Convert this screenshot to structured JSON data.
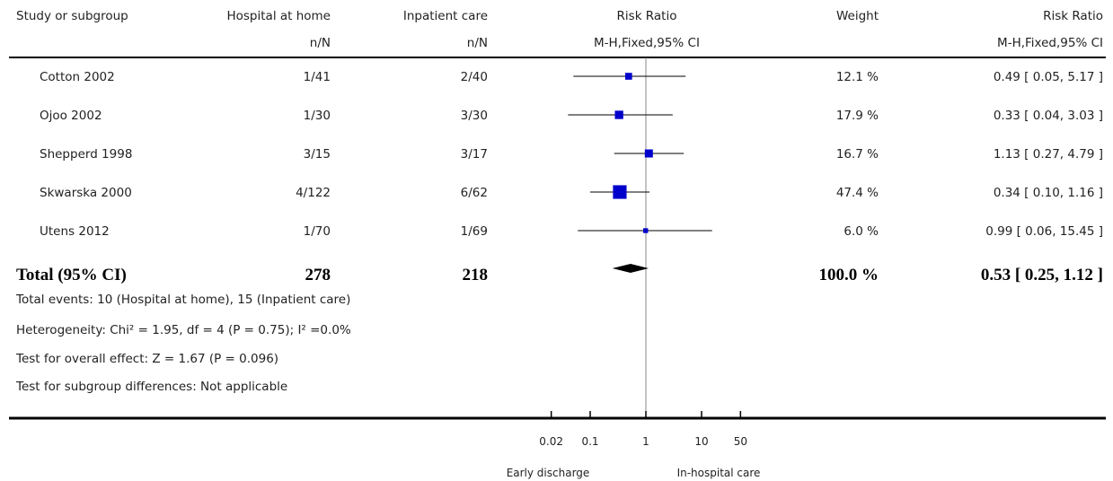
{
  "headers": {
    "study": "Study or subgroup",
    "exp": "Hospital at home",
    "exp_sub": "n/N",
    "ctrl": "Inpatient care",
    "ctrl_sub": "n/N",
    "rr": "Risk Ratio",
    "rr_sub": "M-H,Fixed,95% CI",
    "weight": "Weight",
    "rr2": "Risk Ratio",
    "rr2_sub": "M-H,Fixed,95% CI"
  },
  "studies": [
    {
      "name": "Cotton 2002",
      "exp": "1/41",
      "ctrl": "2/40",
      "weight": "12.1 %",
      "ci_text": "0.49 [ 0.05, 5.17 ]"
    },
    {
      "name": "Ojoo 2002",
      "exp": "1/30",
      "ctrl": "3/30",
      "weight": "17.9 %",
      "ci_text": "0.33 [ 0.04, 3.03 ]"
    },
    {
      "name": "Shepperd 1998",
      "exp": "3/15",
      "ctrl": "3/17",
      "weight": "16.7 %",
      "ci_text": "1.13 [ 0.27, 4.79 ]"
    },
    {
      "name": "Skwarska 2000",
      "exp": "4/122",
      "ctrl": "6/62",
      "weight": "47.4 %",
      "ci_text": "0.34 [ 0.10, 1.16 ]"
    },
    {
      "name": "Utens 2012",
      "exp": "1/70",
      "ctrl": "1/69",
      "weight": "6.0 %",
      "ci_text": "0.99 [ 0.06, 15.45 ]"
    }
  ],
  "total": {
    "label": "Total (95% CI)",
    "exp": "278",
    "ctrl": "218",
    "weight": "100.0 %",
    "ci_text": "0.53 [ 0.25, 1.12 ]"
  },
  "notes": {
    "events": "Total events: 10 (Hospital at home), 15 (Inpatient care)",
    "heterogeneity": "Heterogeneity: Chi² = 1.95, df = 4 (P = 0.75); I² =0.0%",
    "overall": "Test for overall effect: Z = 1.67 (P = 0.096)",
    "subgroup": "Test for subgroup differences: Not applicable"
  },
  "axis": {
    "tick_labels": [
      "0.02",
      "0.1",
      "1",
      "10",
      "50"
    ],
    "left_label": "Early discharge",
    "right_label": "In-hospital care"
  },
  "colors": {
    "marker": "#0000cc",
    "line": "#000000",
    "null_line": "#888888"
  },
  "chart_data": {
    "type": "forest",
    "scale": "log",
    "xlim": [
      0.02,
      50
    ],
    "ticks": [
      0.02,
      0.1,
      1,
      10,
      50
    ],
    "xlabel_left": "Early discharge",
    "xlabel_right": "In-hospital care",
    "points": [
      {
        "study": "Cotton 2002",
        "rr": 0.49,
        "lo": 0.05,
        "hi": 5.17,
        "weight": 12.1
      },
      {
        "study": "Ojoo 2002",
        "rr": 0.33,
        "lo": 0.04,
        "hi": 3.03,
        "weight": 17.9
      },
      {
        "study": "Shepperd 1998",
        "rr": 1.13,
        "lo": 0.27,
        "hi": 4.79,
        "weight": 16.7
      },
      {
        "study": "Skwarska 2000",
        "rr": 0.34,
        "lo": 0.1,
        "hi": 1.16,
        "weight": 47.4
      },
      {
        "study": "Utens 2012",
        "rr": 0.99,
        "lo": 0.06,
        "hi": 15.45,
        "weight": 6.0
      }
    ],
    "pooled": {
      "rr": 0.53,
      "lo": 0.25,
      "hi": 1.12
    }
  }
}
